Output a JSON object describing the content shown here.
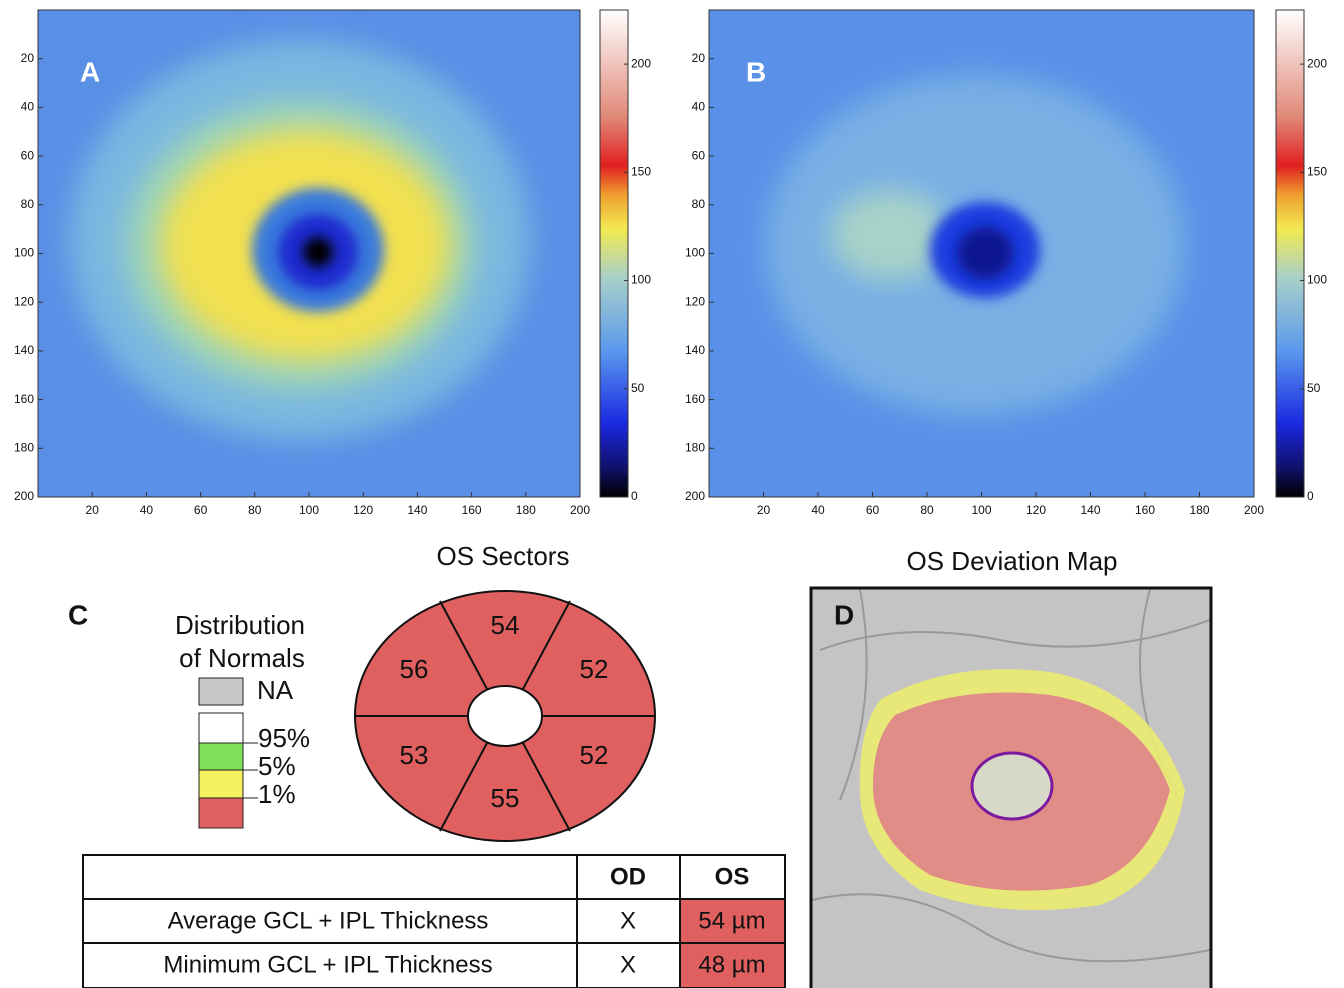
{
  "panel_a": {
    "label": "A",
    "yticks": [
      20,
      40,
      60,
      80,
      100,
      120,
      140,
      160,
      180,
      200
    ],
    "xticks": [
      20,
      40,
      60,
      80,
      100,
      120,
      140,
      160,
      180,
      200
    ],
    "colorbar_ticks": [
      0,
      50,
      100,
      150,
      200
    ]
  },
  "panel_b": {
    "label": "B",
    "yticks": [
      20,
      40,
      60,
      80,
      100,
      120,
      140,
      160,
      180,
      200
    ],
    "xticks": [
      20,
      40,
      60,
      80,
      100,
      120,
      140,
      160,
      180,
      200
    ],
    "colorbar_ticks": [
      0,
      50,
      100,
      150,
      200
    ]
  },
  "panel_c": {
    "label": "C",
    "title": "OS Sectors",
    "legend": {
      "title_lines": [
        "Distribution",
        "of Normals"
      ],
      "items": [
        "NA",
        "95%",
        "5%",
        "1%"
      ]
    },
    "sectors": {
      "top": 54,
      "upper_right": 52,
      "lower_right": 52,
      "bottom": 55,
      "lower_left": 53,
      "upper_left": 56
    },
    "table": {
      "header": [
        "OD",
        "OS"
      ],
      "rows": [
        [
          "Average GCL + IPL Thickness",
          "X",
          "54 µm"
        ],
        [
          "Minimum GCL + IPL Thickness",
          "X",
          "48 µm"
        ]
      ]
    }
  },
  "panel_d": {
    "label": "D",
    "title": "OS Deviation Map"
  }
}
